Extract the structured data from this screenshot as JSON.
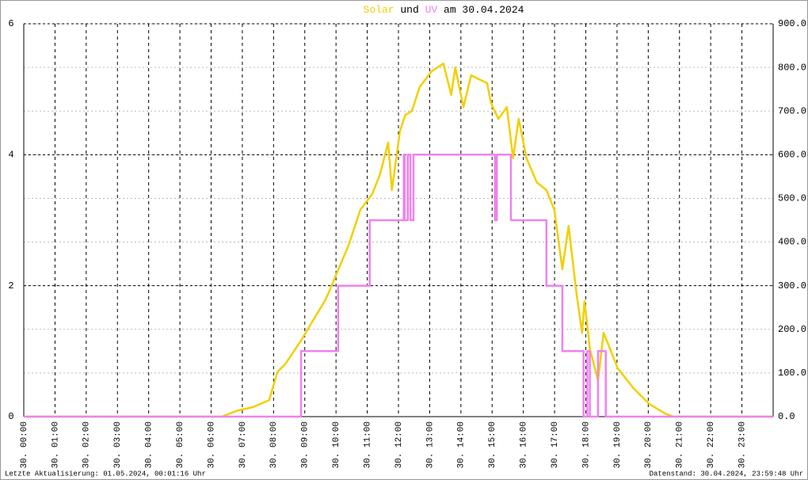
{
  "chart_data": {
    "type": "line",
    "title_connector": "und",
    "title_suffix": "am 30.04.2024",
    "xlim": [
      0,
      24
    ],
    "xticks": [
      {
        "value": 0,
        "label": "30. 00:00"
      },
      {
        "value": 1,
        "label": "30. 01:00"
      },
      {
        "value": 2,
        "label": "30. 02:00"
      },
      {
        "value": 3,
        "label": "30. 03:00"
      },
      {
        "value": 4,
        "label": "30. 04:00"
      },
      {
        "value": 5,
        "label": "30. 05:00"
      },
      {
        "value": 6,
        "label": "30. 06:00"
      },
      {
        "value": 7,
        "label": "30. 07:00"
      },
      {
        "value": 8,
        "label": "30. 08:00"
      },
      {
        "value": 9,
        "label": "30. 09:00"
      },
      {
        "value": 10,
        "label": "30. 10:00"
      },
      {
        "value": 11,
        "label": "30. 11:00"
      },
      {
        "value": 12,
        "label": "30. 12:00"
      },
      {
        "value": 13,
        "label": "30. 13:00"
      },
      {
        "value": 14,
        "label": "30. 14:00"
      },
      {
        "value": 15,
        "label": "30. 15:00"
      },
      {
        "value": 16,
        "label": "30. 16:00"
      },
      {
        "value": 17,
        "label": "30. 17:00"
      },
      {
        "value": 18,
        "label": "30. 18:00"
      },
      {
        "value": 19,
        "label": "30. 19:00"
      },
      {
        "value": 20,
        "label": "30. 20:00"
      },
      {
        "value": 21,
        "label": "30. 21:00"
      },
      {
        "value": 22,
        "label": "30. 22:00"
      },
      {
        "value": 23,
        "label": "30. 23:00"
      }
    ],
    "ylim": [
      0,
      6
    ],
    "yticks": [
      0,
      2,
      4,
      6
    ],
    "y2lim": [
      0,
      900
    ],
    "y2ticks": [
      {
        "value": 0,
        "label": "0.0"
      },
      {
        "value": 100,
        "label": "100.0"
      },
      {
        "value": 200,
        "label": "200.0"
      },
      {
        "value": 300,
        "label": "300.0"
      },
      {
        "value": 400,
        "label": "400.0"
      },
      {
        "value": 500,
        "label": "500.0"
      },
      {
        "value": 600,
        "label": "600.0"
      },
      {
        "value": 700,
        "label": "700.0"
      },
      {
        "value": 800,
        "label": "800.0"
      },
      {
        "value": 900,
        "label": "900.0"
      }
    ],
    "grid": true,
    "series": [
      {
        "name": "Solar",
        "color": "#f2cf00",
        "axis": "y2",
        "x": [
          0,
          6.34,
          6.85,
          7.35,
          7.86,
          8.12,
          8.37,
          8.88,
          9.26,
          9.64,
          9.76,
          10.02,
          10.4,
          10.78,
          11.16,
          11.41,
          11.67,
          11.79,
          12.05,
          12.22,
          12.43,
          12.68,
          13.06,
          13.44,
          13.69,
          13.82,
          14.08,
          14.33,
          14.58,
          14.84,
          14.96,
          15.2,
          15.47,
          15.67,
          15.85,
          16.1,
          16.43,
          16.74,
          16.99,
          17.25,
          17.45,
          17.7,
          17.88,
          17.96,
          18.13,
          18.39,
          18.57,
          18.77,
          19.02,
          19.53,
          20.03,
          20.54,
          20.8,
          24
        ],
        "values": [
          0,
          0,
          14,
          22,
          38,
          102,
          120,
          174,
          220,
          265,
          283,
          328,
          392,
          474,
          510,
          555,
          628,
          519,
          655,
          691,
          700,
          755,
          791,
          809,
          737,
          800,
          709,
          782,
          773,
          764,
          719,
          682,
          709,
          592,
          682,
          592,
          537,
          519,
          474,
          338,
          437,
          283,
          192,
          265,
          156,
          83,
          192,
          156,
          111,
          65,
          29,
          7,
          0,
          0
        ]
      },
      {
        "name": "UV",
        "color": "#ee82ee",
        "axis": "y",
        "x": [
          0,
          8.88,
          8.88,
          10.07,
          10.07,
          11.08,
          11.08,
          12.17,
          12.17,
          12.2,
          12.2,
          12.3,
          12.3,
          12.38,
          12.38,
          12.48,
          12.48,
          15.09,
          15.09,
          15.15,
          15.15,
          15.6,
          15.6,
          16.74,
          16.74,
          17.25,
          17.25,
          17.93,
          17.93,
          18.05,
          18.05,
          18.13,
          18.13,
          18.39,
          18.39,
          18.64,
          18.64,
          24
        ],
        "values": [
          0,
          0,
          1,
          1,
          2,
          2,
          3,
          3,
          4,
          4,
          3,
          3,
          4,
          4,
          3,
          3,
          4,
          4,
          3,
          3,
          4,
          4,
          3,
          3,
          2,
          2,
          1,
          1,
          0,
          0,
          1,
          1,
          0,
          0,
          1,
          1,
          0,
          0
        ]
      }
    ],
    "footer_left": "Letzte Aktualisierung: 01.05.2024, 00:01:16 Uhr",
    "footer_right": "Datenstand: 30.04.2024, 23:59:48 Uhr"
  }
}
